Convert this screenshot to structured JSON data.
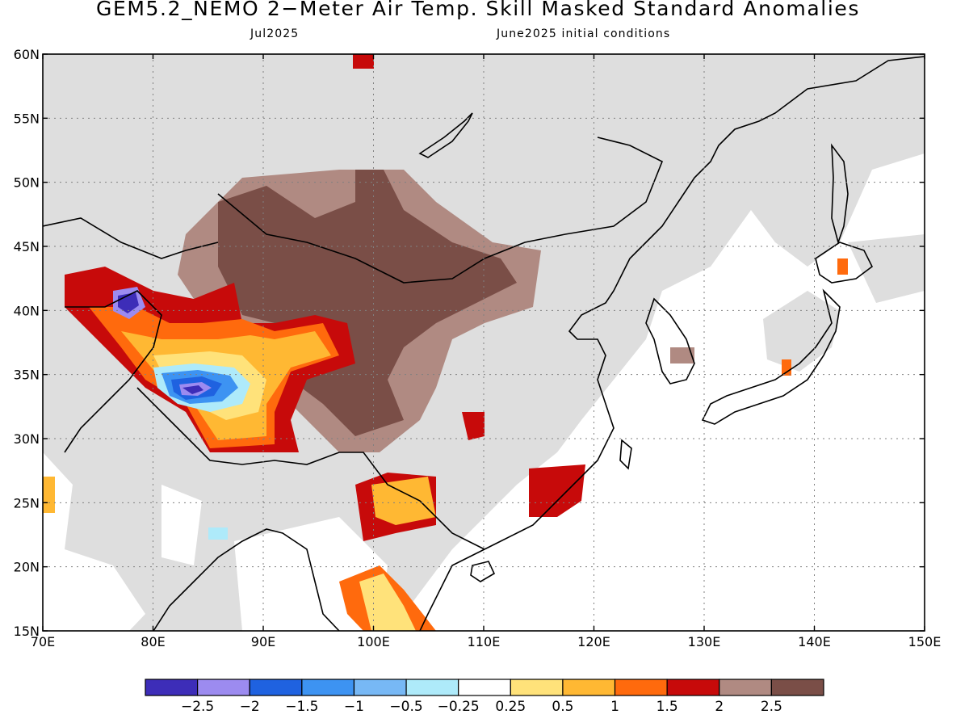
{
  "header": {
    "title": "GEM5.2_NEMO 2−Meter Air Temp. Skill Masked Standard Anomalies",
    "valid_month": "Jul2025",
    "init_label": "June2025 initial conditions"
  },
  "map": {
    "lon_range": [
      70,
      150
    ],
    "lat_range": [
      15,
      60
    ],
    "x_ticks": [
      {
        "v": 70,
        "label": "70E"
      },
      {
        "v": 80,
        "label": "80E"
      },
      {
        "v": 90,
        "label": "90E"
      },
      {
        "v": 100,
        "label": "100E"
      },
      {
        "v": 110,
        "label": "110E"
      },
      {
        "v": 120,
        "label": "120E"
      },
      {
        "v": 130,
        "label": "130E"
      },
      {
        "v": 140,
        "label": "140E"
      },
      {
        "v": 150,
        "label": "150E"
      }
    ],
    "y_ticks": [
      {
        "v": 15,
        "label": "15N"
      },
      {
        "v": 20,
        "label": "20N"
      },
      {
        "v": 25,
        "label": "25N"
      },
      {
        "v": 30,
        "label": "30N"
      },
      {
        "v": 35,
        "label": "35N"
      },
      {
        "v": 40,
        "label": "40N"
      },
      {
        "v": 45,
        "label": "45N"
      },
      {
        "v": 50,
        "label": "50N"
      },
      {
        "v": 55,
        "label": "55N"
      },
      {
        "v": 60,
        "label": "60N"
      }
    ],
    "mask_color": "#dedede",
    "coast_color": "#000000"
  },
  "colorbar": {
    "colors": [
      "#3d2db8",
      "#9c8bf0",
      "#1f62e0",
      "#3d93f2",
      "#77b8f5",
      "#aeeafa",
      "#ffffff",
      "#ffe27a",
      "#ffb833",
      "#ff6a0d",
      "#c70a0a",
      "#b08a82",
      "#7a4e47"
    ],
    "labels": [
      "−2.5",
      "−2",
      "−1.5",
      "−1",
      "−0.5",
      "−0.25",
      "0.25",
      "0.5",
      "1",
      "1.5",
      "2",
      "2.5"
    ]
  },
  "anomaly_regions": [
    {
      "name": "mongolia-core",
      "level": 2.5
    },
    {
      "name": "central-asia-core",
      "level": 2
    },
    {
      "name": "tibet-negative-core",
      "level": -2.5
    },
    {
      "name": "tarim-warm",
      "level": 1
    },
    {
      "name": "southern-china-warm",
      "level": 2
    },
    {
      "name": "indochina-warm",
      "level": 0.5
    }
  ]
}
